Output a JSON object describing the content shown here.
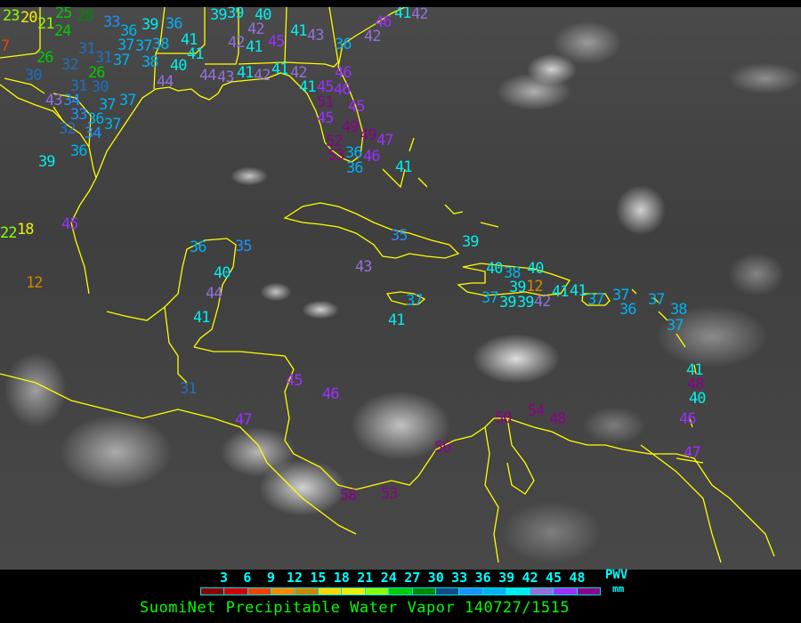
{
  "title": "SuomiNet Precipitable Water Vapor 140727/1515",
  "legend": {
    "quantity": "PWV",
    "units": "mm",
    "ticks": [
      "3",
      "6",
      "9",
      "12",
      "15",
      "18",
      "21",
      "24",
      "27",
      "30",
      "33",
      "36",
      "39",
      "42",
      "45",
      "48"
    ],
    "bin_colors": [
      "#8b0000",
      "#cc0000",
      "#ee4400",
      "#ff8800",
      "#cc8800",
      "#ffd700",
      "#eeee00",
      "#88ff00",
      "#00cc00",
      "#008800",
      "#104e8b",
      "#1e90ff",
      "#00b2ee",
      "#00eeee",
      "#9370db",
      "#9b30ff",
      "#8b008b"
    ]
  },
  "map": {
    "coastline_color": "#ffff00",
    "stations": [
      "23",
      "20",
      "21",
      "25",
      "28",
      "24",
      "31",
      "26",
      "32",
      "30",
      "31",
      "37",
      "26",
      "30",
      "33",
      "36",
      "37",
      "39",
      "36",
      "37",
      "38",
      "38",
      "41",
      "41",
      "40",
      "44",
      "39",
      "39",
      "42",
      "40",
      "42",
      "41",
      "45",
      "41",
      "43",
      "36",
      "46",
      "42",
      "41",
      "42",
      "44",
      "43",
      "41",
      "42",
      "41",
      "42",
      "41",
      "46",
      "45",
      "46",
      "51",
      "45",
      "45",
      "49",
      "49",
      "52",
      "53",
      "47",
      "36",
      "46",
      "36",
      "41",
      "43",
      "34",
      "31",
      "37",
      "37",
      "33",
      "36",
      "34",
      "37",
      "32",
      "36",
      "39",
      "7",
      "22",
      "18",
      "45",
      "12",
      "36",
      "35",
      "35",
      "39",
      "40",
      "44",
      "43",
      "41",
      "37",
      "41",
      "40",
      "38",
      "40",
      "39",
      "12",
      "37",
      "39",
      "39",
      "42",
      "41",
      "41",
      "37",
      "37",
      "36",
      "37",
      "38",
      "37",
      "31",
      "45",
      "46",
      "47",
      "41",
      "48",
      "40",
      "46",
      "50",
      "54",
      "48",
      "56",
      "58",
      "53",
      "47"
    ]
  }
}
